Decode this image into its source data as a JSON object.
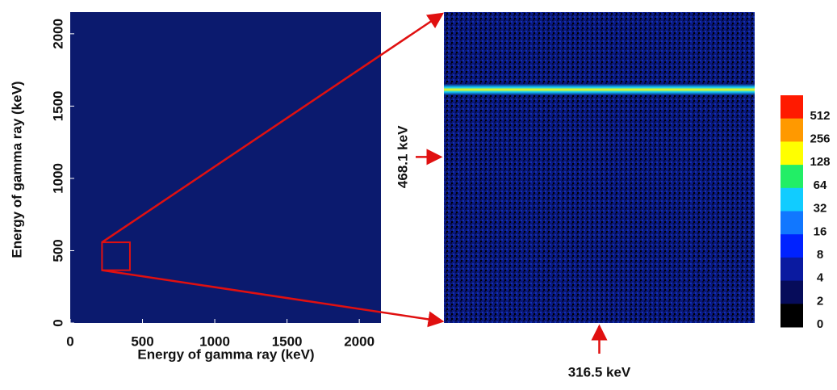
{
  "chart_data": {
    "type": "matrix",
    "xlabel": "Energy of gamma ray    (keV)",
    "ylabel": "Energy of gamma ray    (keV)",
    "xlim": [
      0,
      2150
    ],
    "ylim": [
      0,
      2150
    ],
    "xticks": [
      0,
      500,
      1000,
      1500,
      2000
    ],
    "yticks": [
      0,
      500,
      1000,
      1500,
      2000
    ],
    "zoom_xlim": [
      220,
      413
    ],
    "zoom_ylim": [
      365,
      558
    ],
    "annotations": [
      {
        "text": "468.1 keV",
        "axis": "y",
        "value": 468.1
      },
      {
        "text": "316.5 keV",
        "axis": "x",
        "value": 316.5
      }
    ],
    "colorbar": {
      "labels": [
        "512",
        "256",
        "128",
        "64",
        "32",
        "16",
        "8",
        "4",
        "2",
        "0"
      ],
      "colors": [
        "#ff1a00",
        "#ff9900",
        "#ffff00",
        "#22ee66",
        "#11ccff",
        "#1177ff",
        "#0022ff",
        "#0a1aa0",
        "#060c5a",
        "#000000"
      ]
    }
  }
}
